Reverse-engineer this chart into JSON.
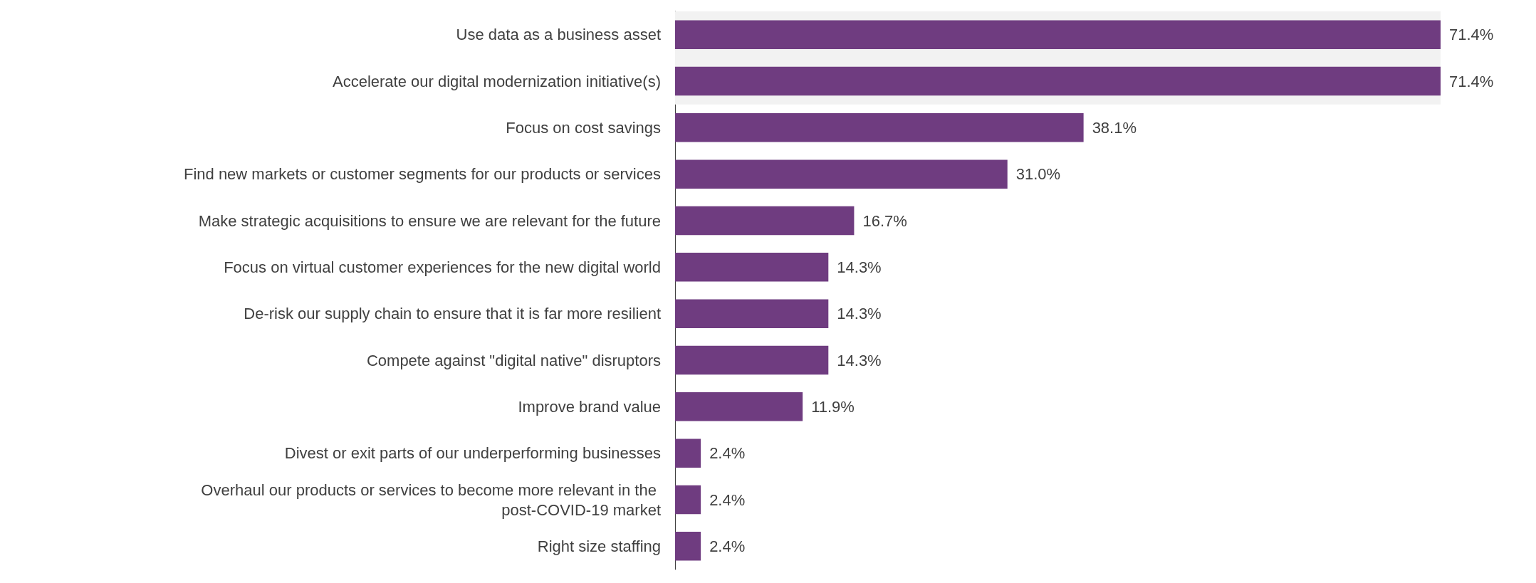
{
  "chart_data": {
    "type": "bar",
    "orientation": "horizontal",
    "categories": [
      "Use data as a business asset",
      "Accelerate our digital modernization initiative(s)",
      "Focus on cost savings",
      "Find new markets or customer segments for our products or services",
      "Make strategic acquisitions to ensure we are relevant for the future",
      "Focus on virtual customer experiences for the new digital world",
      "De-risk our supply chain to ensure that it is far more resilient",
      "Compete against \"digital native\" disruptors",
      "Improve brand value",
      "Divest or exit parts of our underperforming businesses",
      "Overhaul our products or services to become more relevant in the post-COVID-19 market",
      "Right size staffing"
    ],
    "values": [
      71.4,
      71.4,
      38.1,
      31.0,
      16.7,
      14.3,
      14.3,
      14.3,
      11.9,
      2.4,
      2.4,
      2.4
    ],
    "value_labels": [
      "71.4%",
      "71.4%",
      "38.1%",
      "31.0%",
      "16.7%",
      "14.3%",
      "14.3%",
      "14.3%",
      "11.9%",
      "2.4%",
      "2.4%",
      "2.4%"
    ],
    "color": "#6f3c80",
    "bands": [
      {
        "axis": "y",
        "from": "Use data as a business asset",
        "to": "Accelerate our digital modernization initiative(s)",
        "color": "#f2f2f2"
      }
    ]
  }
}
